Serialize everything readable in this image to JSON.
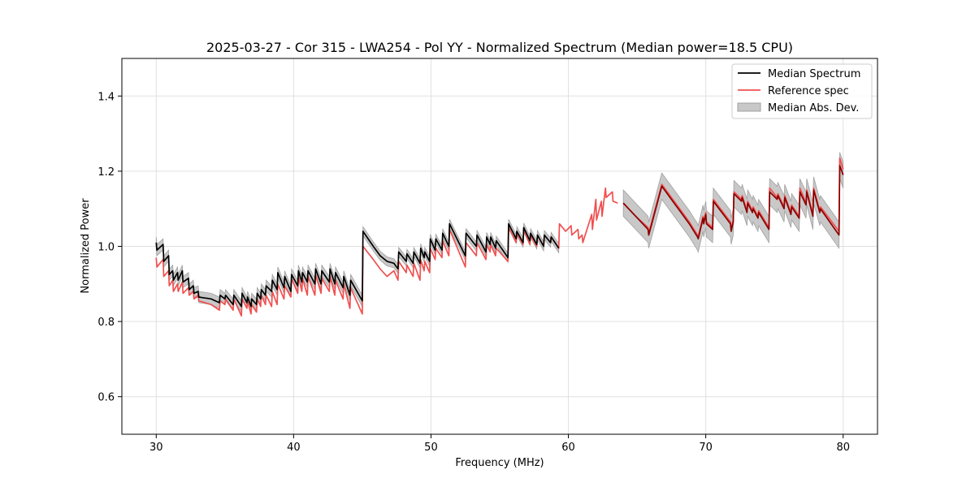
{
  "chart_data": {
    "type": "line",
    "title": "2025-03-27 - Cor 315 - LWA254 - Pol YY - Normalized Spectrum (Median power=18.5 CPU)",
    "xlabel": "Frequency (MHz)",
    "ylabel": "Normalized Power",
    "xlim": [
      27.5,
      82.5
    ],
    "ylim": [
      0.5,
      1.5
    ],
    "xticks": [
      30,
      40,
      50,
      60,
      70,
      80
    ],
    "yticks": [
      0.6,
      0.8,
      1.0,
      1.2,
      1.4
    ],
    "xtick_labels": [
      "30",
      "40",
      "50",
      "60",
      "70",
      "80"
    ],
    "ytick_labels": [
      "0.6",
      "0.8",
      "1.0",
      "1.2",
      "1.4"
    ],
    "grid": true,
    "legend_position": "top-right",
    "legend": [
      "Median Spectrum",
      "Reference spec",
      "Median Abs. Dev."
    ],
    "colors": {
      "median": "#000000",
      "reference": "#f05050",
      "band": "#a0a0a0",
      "overlap": "#8b0000",
      "grid": "#e0e0e0"
    },
    "series": [
      {
        "name": "Median Spectrum",
        "segments": [
          {
            "x": [
              30.0,
              30.05,
              30.5,
              30.55,
              30.9,
              30.95,
              31.2,
              31.25,
              31.55,
              31.6,
              31.9,
              31.95,
              32.35,
              32.4,
              32.7,
              32.75,
              33.05,
              33.1,
              34.0,
              34.6,
              34.65,
              35.0,
              35.05,
              35.6,
              35.65,
              36.2,
              36.25,
              36.6,
              36.65,
              36.9,
              36.95,
              37.3,
              37.35,
              37.6,
              37.65,
              37.95,
              38.0,
              38.4,
              38.45,
              38.8,
              38.85,
              39.3,
              39.35,
              39.8,
              39.85,
              40.3,
              40.35,
              40.6,
              40.65,
              41.0,
              41.05,
              41.55,
              41.6,
              42.0,
              42.05,
              42.6,
              42.65,
              43.0,
              43.05,
              43.6,
              43.65,
              44.1,
              44.15,
              45.0,
              45.05,
              45.8,
              46.3,
              46.8,
              47.3,
              47.6,
              47.65,
              48.2,
              48.25,
              48.7,
              48.75,
              49.2,
              49.25,
              49.5,
              49.55,
              49.9,
              49.95,
              50.3,
              50.35,
              50.8,
              50.85,
              51.3,
              51.35,
              52.5,
              52.55,
              53.3,
              53.35,
              54.0,
              54.05,
              54.3,
              54.35,
              54.7,
              54.75,
              55.6,
              55.65,
              56.2,
              56.25,
              56.7,
              56.75,
              57.2,
              57.25,
              57.7,
              57.75,
              58.2,
              58.25,
              58.7,
              58.75,
              59.3
            ],
            "y": [
              1.01,
              0.99,
              1.005,
              0.96,
              0.975,
              0.925,
              0.935,
              0.91,
              0.93,
              0.91,
              0.935,
              0.905,
              0.915,
              0.885,
              0.895,
              0.875,
              0.88,
              0.865,
              0.86,
              0.85,
              0.87,
              0.86,
              0.87,
              0.845,
              0.87,
              0.84,
              0.875,
              0.85,
              0.865,
              0.84,
              0.86,
              0.845,
              0.875,
              0.86,
              0.885,
              0.87,
              0.895,
              0.88,
              0.91,
              0.885,
              0.93,
              0.89,
              0.92,
              0.88,
              0.925,
              0.895,
              0.935,
              0.905,
              0.93,
              0.905,
              0.935,
              0.9,
              0.94,
              0.9,
              0.935,
              0.905,
              0.94,
              0.9,
              0.93,
              0.89,
              0.92,
              0.87,
              0.91,
              0.855,
              1.04,
              1.0,
              0.975,
              0.96,
              0.955,
              0.94,
              0.985,
              0.96,
              0.98,
              0.955,
              0.985,
              0.955,
              0.995,
              0.97,
              0.985,
              0.96,
              1.02,
              0.99,
              1.02,
              0.99,
              1.035,
              1.0,
              1.06,
              0.975,
              1.035,
              1.0,
              1.03,
              0.985,
              1.025,
              1.005,
              1.025,
              0.995,
              1.015,
              0.97,
              1.06,
              1.02,
              1.04,
              1.01,
              1.05,
              1.015,
              1.035,
              1.005,
              1.03,
              1.0,
              1.03,
              1.01,
              1.025,
              0.995
            ]
          },
          {
            "x": [
              64.0,
              64.9,
              65.8,
              65.85,
              66.8,
              67.8,
              68.8,
              69.4,
              69.45,
              69.8,
              69.85,
              70.0,
              70.05,
              70.5,
              70.55,
              71.8,
              71.85,
              72.0,
              72.05,
              72.6,
              72.65,
              73.0,
              73.05,
              73.4,
              73.45,
              73.8,
              73.85,
              74.6,
              74.65,
              75.2,
              75.25,
              75.7,
              75.75,
              76.2,
              76.25,
              76.8,
              76.85,
              77.3,
              77.35,
              77.8,
              77.85,
              78.3,
              78.35,
              79.7,
              79.75,
              80.0
            ],
            "y": [
              1.115,
              1.08,
              1.045,
              1.03,
              1.16,
              1.11,
              1.06,
              1.025,
              1.02,
              1.075,
              1.06,
              1.085,
              1.06,
              1.045,
              1.12,
              1.06,
              1.04,
              1.065,
              1.14,
              1.12,
              1.13,
              1.09,
              1.115,
              1.09,
              1.1,
              1.075,
              1.09,
              1.045,
              1.145,
              1.125,
              1.135,
              1.1,
              1.13,
              1.085,
              1.105,
              1.075,
              1.145,
              1.11,
              1.145,
              1.08,
              1.15,
              1.09,
              1.1,
              1.03,
              1.215,
              1.19
            ]
          }
        ]
      },
      {
        "name": "Reference spec",
        "segments": [
          {
            "x": [
              30.0,
              30.05,
              30.5,
              30.55,
              30.9,
              30.95,
              31.2,
              31.25,
              31.55,
              31.6,
              31.9,
              31.95,
              32.35,
              32.4,
              32.7,
              32.75,
              33.05,
              33.1,
              34.0,
              34.6,
              34.65,
              35.0,
              35.05,
              35.6,
              35.65,
              36.2,
              36.25,
              36.6,
              36.65,
              36.9,
              36.95,
              37.3,
              37.35,
              37.6,
              37.65,
              37.95,
              38.0,
              38.4,
              38.45,
              38.8,
              38.85,
              39.3,
              39.35,
              39.8,
              39.85,
              40.3,
              40.35,
              40.6,
              40.65,
              41.0,
              41.05,
              41.55,
              41.6,
              42.0,
              42.05,
              42.6,
              42.65,
              43.0,
              43.05,
              43.6,
              43.65,
              44.1,
              44.15,
              45.0,
              45.05,
              45.8,
              46.3,
              46.8,
              47.3,
              47.6,
              47.65,
              48.2,
              48.25,
              48.7,
              48.75,
              49.2,
              49.25,
              49.5,
              49.55,
              49.9,
              49.95,
              50.3,
              50.35,
              50.8,
              50.85,
              51.3,
              51.35,
              52.5,
              52.55,
              53.3,
              53.35,
              54.0,
              54.05,
              54.3,
              54.35,
              54.7,
              54.75,
              55.6,
              55.65,
              56.2,
              56.25,
              56.7,
              56.75,
              57.2,
              57.25,
              57.7,
              57.75,
              58.2,
              58.25,
              58.7,
              58.75,
              59.3,
              59.35,
              59.8,
              60.2,
              60.25,
              60.7,
              60.75,
              61.0,
              61.05,
              61.7,
              61.75,
              62.0,
              62.05,
              62.4,
              62.45,
              62.7,
              62.75,
              63.2,
              63.25,
              63.6
            ],
            "y": [
              0.97,
              0.945,
              0.965,
              0.92,
              0.935,
              0.895,
              0.91,
              0.88,
              0.9,
              0.88,
              0.905,
              0.875,
              0.89,
              0.87,
              0.88,
              0.86,
              0.87,
              0.855,
              0.845,
              0.83,
              0.855,
              0.845,
              0.86,
              0.83,
              0.86,
              0.815,
              0.86,
              0.835,
              0.855,
              0.82,
              0.845,
              0.825,
              0.86,
              0.84,
              0.87,
              0.845,
              0.87,
              0.84,
              0.88,
              0.845,
              0.9,
              0.86,
              0.895,
              0.865,
              0.915,
              0.875,
              0.92,
              0.88,
              0.915,
              0.87,
              0.92,
              0.87,
              0.925,
              0.875,
              0.915,
              0.88,
              0.92,
              0.87,
              0.91,
              0.86,
              0.9,
              0.835,
              0.89,
              0.82,
              1.0,
              0.965,
              0.94,
              0.92,
              0.935,
              0.91,
              0.96,
              0.93,
              0.95,
              0.92,
              0.955,
              0.91,
              0.965,
              0.935,
              0.96,
              0.93,
              0.995,
              0.965,
              0.995,
              0.97,
              1.015,
              0.975,
              1.045,
              0.945,
              1.01,
              0.975,
              1.01,
              0.965,
              1.005,
              0.985,
              1.005,
              0.975,
              0.995,
              0.96,
              1.05,
              1.01,
              1.035,
              1.005,
              1.045,
              1.005,
              1.03,
              1.0,
              1.03,
              1.0,
              1.03,
              1.01,
              1.025,
              0.995,
              1.06,
              1.04,
              1.055,
              1.03,
              1.045,
              1.02,
              1.03,
              1.01,
              1.085,
              1.045,
              1.125,
              1.07,
              1.12,
              1.08,
              1.155,
              1.13,
              1.145,
              1.12,
              1.115
            ]
          },
          {
            "x": [
              64.0,
              64.9,
              65.8,
              65.85,
              66.8,
              67.8,
              68.8,
              69.4,
              69.45,
              69.8,
              69.85,
              70.0,
              70.05,
              70.5,
              70.55,
              71.8,
              71.85,
              72.0,
              72.05,
              72.6,
              72.65,
              73.0,
              73.05,
              73.4,
              73.45,
              73.8,
              73.85,
              74.6,
              74.65,
              75.2,
              75.25,
              75.7,
              75.75,
              76.2,
              76.25,
              76.8,
              76.85,
              77.3,
              77.35,
              77.8,
              77.85,
              78.3,
              78.35,
              79.7,
              79.75,
              80.0
            ],
            "y": [
              1.115,
              1.08,
              1.05,
              1.035,
              1.165,
              1.115,
              1.065,
              1.03,
              1.025,
              1.08,
              1.065,
              1.09,
              1.065,
              1.05,
              1.125,
              1.065,
              1.045,
              1.07,
              1.145,
              1.125,
              1.135,
              1.095,
              1.12,
              1.095,
              1.105,
              1.08,
              1.095,
              1.05,
              1.155,
              1.13,
              1.14,
              1.105,
              1.135,
              1.09,
              1.11,
              1.08,
              1.155,
              1.115,
              1.15,
              1.085,
              1.155,
              1.095,
              1.105,
              1.04,
              1.235,
              1.205
            ]
          }
        ]
      },
      {
        "name": "Median Abs. Dev.",
        "type": "band",
        "half_width_mhz_ranges": [
          {
            "x_from": 30.0,
            "x_to": 45.0,
            "half_width": 0.015
          },
          {
            "x_from": 45.0,
            "x_to": 59.3,
            "half_width": 0.012
          },
          {
            "x_from": 64.0,
            "x_to": 80.0,
            "half_width": 0.035
          }
        ]
      }
    ]
  }
}
